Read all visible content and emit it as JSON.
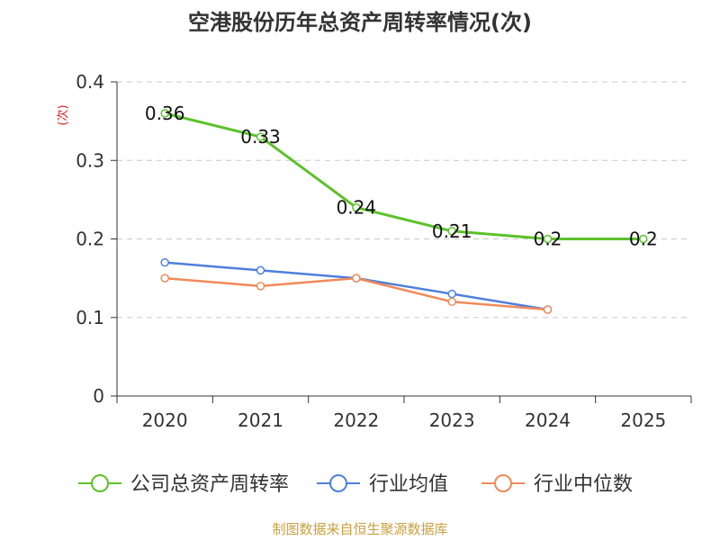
{
  "chart_data": {
    "type": "line",
    "title": "空港股份历年总资产周转率情况(次)",
    "ylabel": "(次)",
    "xlabel": "",
    "categories": [
      "2020",
      "2021",
      "2022",
      "2023",
      "2024",
      "2025"
    ],
    "ylim": [
      0,
      0.4
    ],
    "yticks": [
      0,
      0.1,
      0.2,
      0.3,
      0.4
    ],
    "ytick_labels": [
      "0",
      "0.1",
      "0.2",
      "0.3",
      "0.4"
    ],
    "grid": true,
    "legend_position": "bottom",
    "series": [
      {
        "name": "公司总资产周转率",
        "color": "#5cc22a",
        "values": [
          0.36,
          0.33,
          0.24,
          0.21,
          0.2,
          0.2
        ],
        "labels": [
          "0.36",
          "0.33",
          "0.24",
          "0.21",
          "0.2",
          "0.2"
        ]
      },
      {
        "name": "行业均值",
        "color": "#4f7fdc",
        "values": [
          0.17,
          0.16,
          0.15,
          0.13,
          0.11,
          null
        ]
      },
      {
        "name": "行业中位数",
        "color": "#f08a5a",
        "values": [
          0.15,
          0.14,
          0.15,
          0.12,
          0.11,
          null
        ]
      }
    ]
  },
  "footer": {
    "source": "制图数据来自恒生聚源数据库"
  }
}
